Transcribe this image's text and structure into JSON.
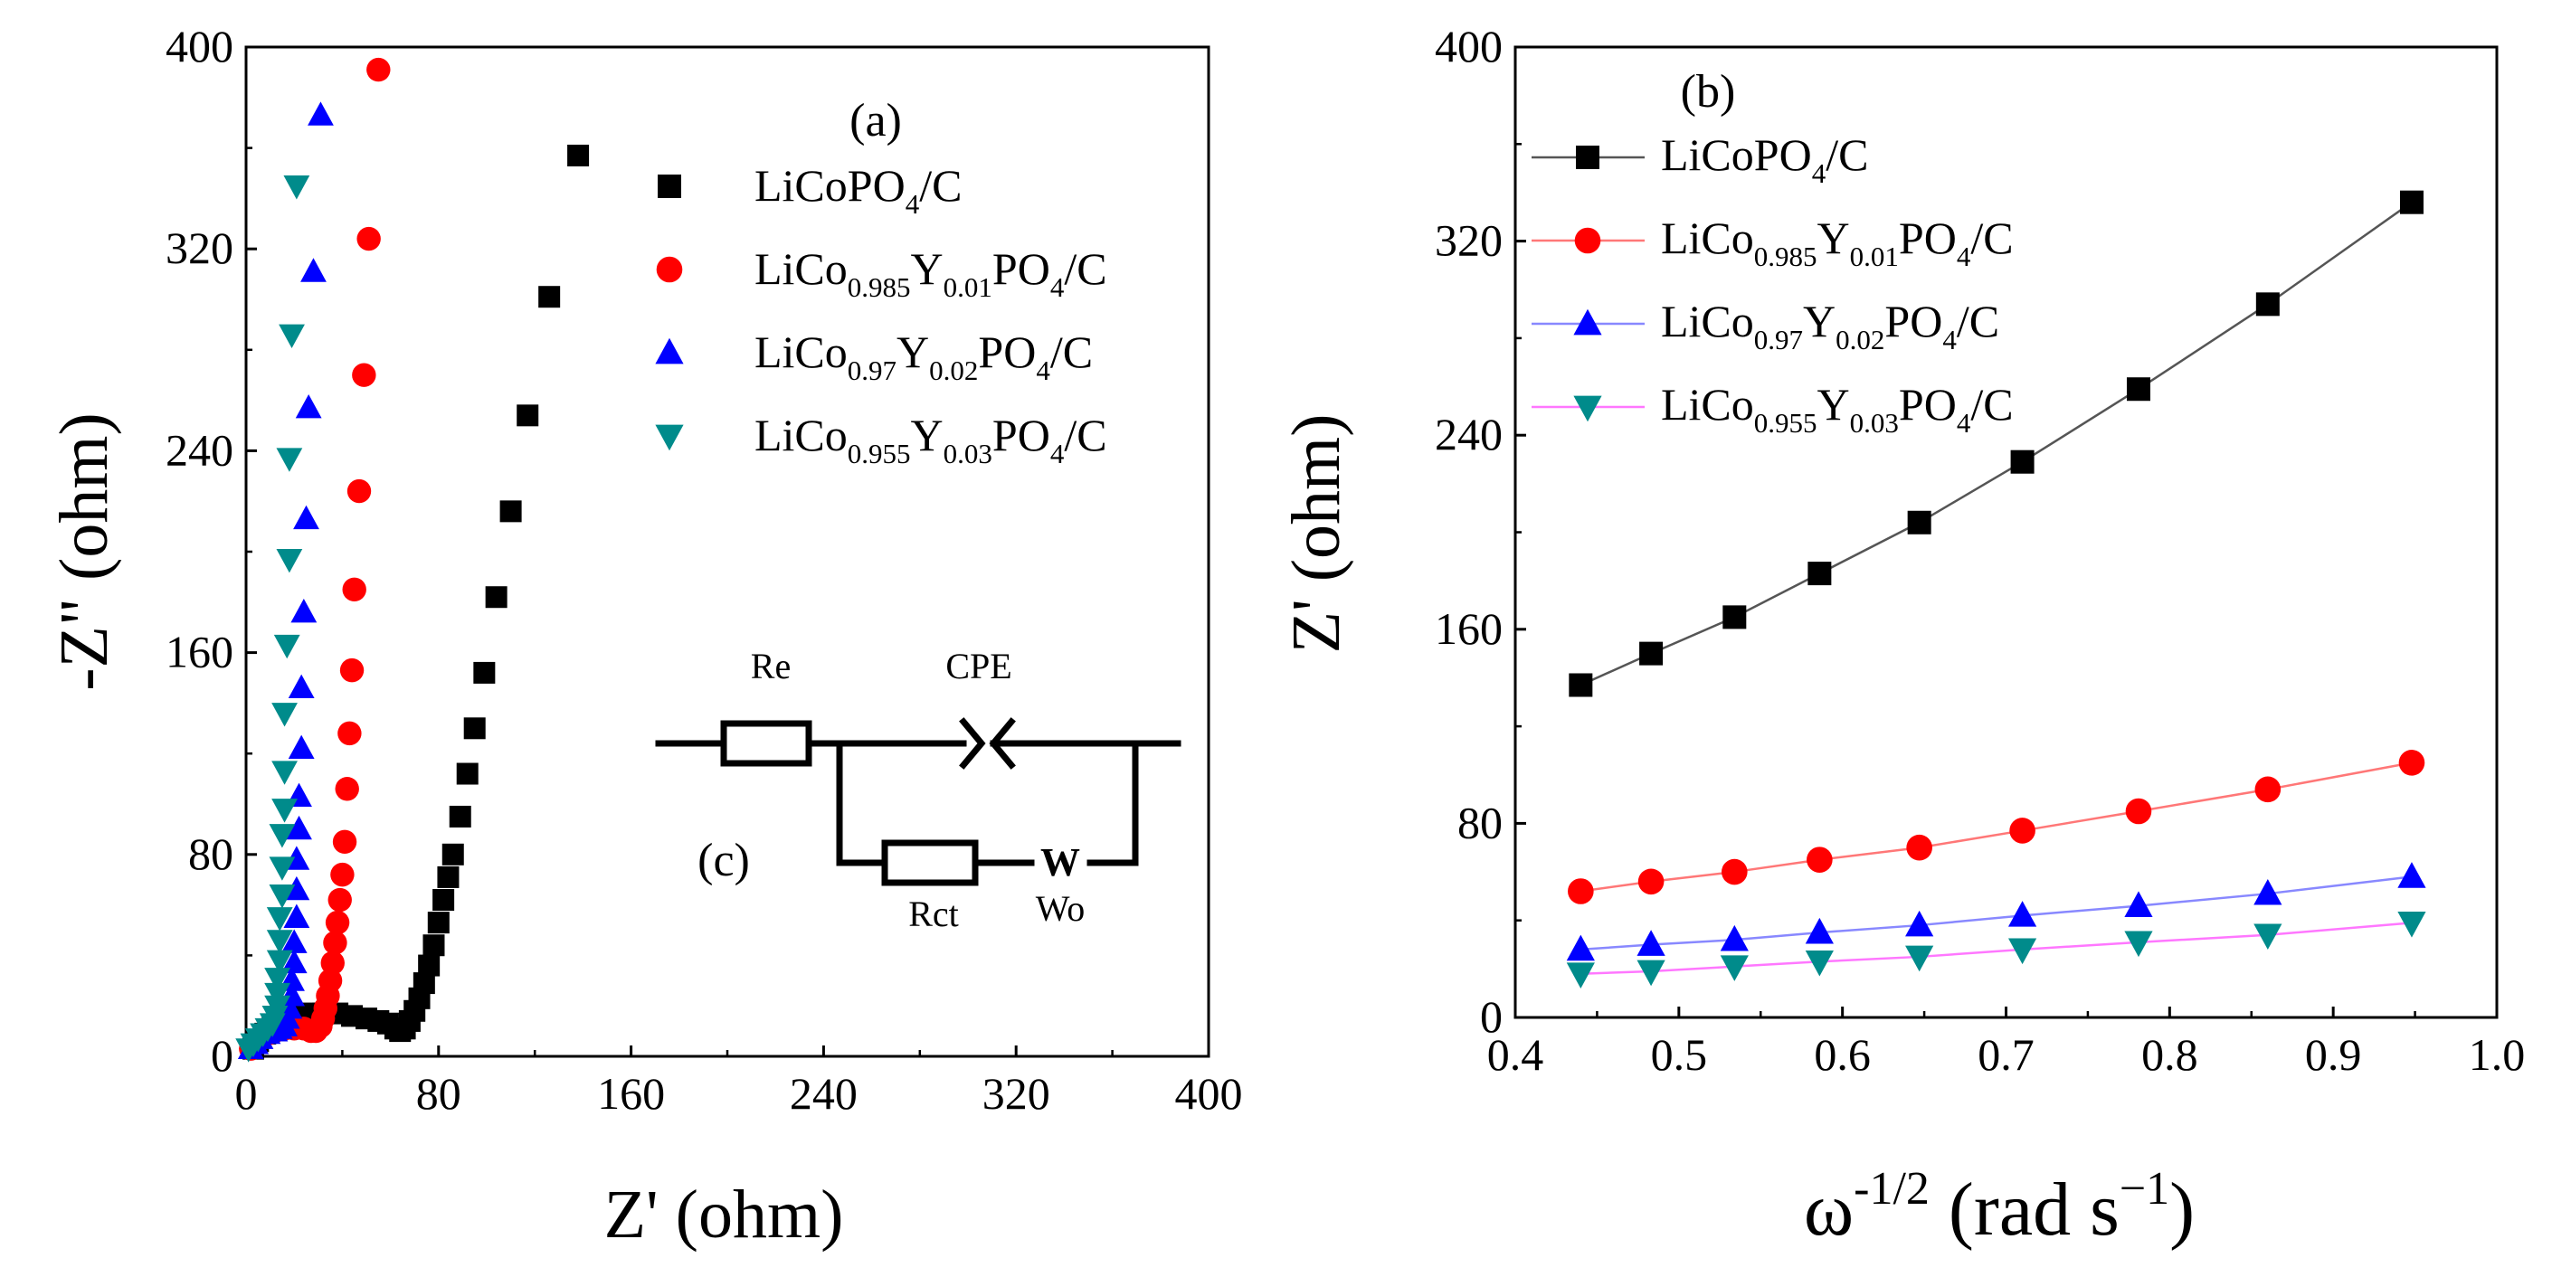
{
  "chart_data": [
    {
      "type": "scatter",
      "panel_label": "(a)",
      "xlabel": "Z' (ohm)",
      "ylabel": "-Z\" (ohm)",
      "xlim": [
        0,
        400
      ],
      "ylim": [
        0,
        400
      ],
      "xticks": [
        "0",
        "80",
        "160",
        "240",
        "320",
        "400"
      ],
      "yticks": [
        "0",
        "80",
        "160",
        "240",
        "320",
        "400"
      ],
      "legend_position": "top-right",
      "series": [
        {
          "name": "LiCoPO4/C",
          "name_parts": [
            {
              "t": "LiCoPO"
            },
            {
              "t": "4",
              "sub": true
            },
            {
              "t": "/C"
            }
          ],
          "marker": "square",
          "color": "#000000",
          "points": [
            [
              3,
              3
            ],
            [
              5,
              6
            ],
            [
              8,
              9
            ],
            [
              11,
              12
            ],
            [
              15,
              14
            ],
            [
              20,
              16
            ],
            [
              26,
              17
            ],
            [
              32,
              17
            ],
            [
              38,
              17
            ],
            [
              44,
              16
            ],
            [
              50,
              15
            ],
            [
              55,
              14
            ],
            [
              59,
              13
            ],
            [
              62,
              11
            ],
            [
              64,
              10
            ],
            [
              66,
              11
            ],
            [
              68,
              14
            ],
            [
              70,
              18
            ],
            [
              72,
              23
            ],
            [
              74,
              29
            ],
            [
              76,
              36
            ],
            [
              78,
              44
            ],
            [
              80,
              53
            ],
            [
              82,
              62
            ],
            [
              84,
              71
            ],
            [
              86,
              80
            ],
            [
              89,
              95
            ],
            [
              92,
              112
            ],
            [
              95,
              130
            ],
            [
              99,
              152
            ],
            [
              104,
              182
            ],
            [
              110,
              216
            ],
            [
              117,
              254
            ],
            [
              126,
              301
            ],
            [
              138,
              357
            ]
          ]
        },
        {
          "name": "LiCo0.985Y0.01PO4/C",
          "name_parts": [
            {
              "t": "LiCo"
            },
            {
              "t": "0.985",
              "sub": true
            },
            {
              "t": "Y"
            },
            {
              "t": "0.01",
              "sub": true
            },
            {
              "t": "PO"
            },
            {
              "t": "4",
              "sub": true
            },
            {
              "t": "/C"
            }
          ],
          "marker": "circle",
          "color": "#ff0000",
          "points": [
            [
              2,
              3
            ],
            [
              4,
              5
            ],
            [
              6,
              7
            ],
            [
              9,
              9
            ],
            [
              12,
              10
            ],
            [
              16,
              11
            ],
            [
              20,
              11
            ],
            [
              24,
              11
            ],
            [
              27,
              10
            ],
            [
              29,
              10
            ],
            [
              31,
              12
            ],
            [
              32,
              15
            ],
            [
              33,
              19
            ],
            [
              34,
              24
            ],
            [
              35,
              30
            ],
            [
              36,
              37
            ],
            [
              37,
              45
            ],
            [
              38,
              53
            ],
            [
              39,
              62
            ],
            [
              40,
              72
            ],
            [
              41,
              85
            ],
            [
              42,
              106
            ],
            [
              43,
              128
            ],
            [
              44,
              153
            ],
            [
              45,
              185
            ],
            [
              47,
              224
            ],
            [
              49,
              270
            ],
            [
              51,
              324
            ],
            [
              55,
              391
            ]
          ]
        },
        {
          "name": "LiCo0.97Y0.02PO4/C",
          "name_parts": [
            {
              "t": "LiCo"
            },
            {
              "t": "0.97",
              "sub": true
            },
            {
              "t": "Y"
            },
            {
              "t": "0.02",
              "sub": true
            },
            {
              "t": "PO"
            },
            {
              "t": "4",
              "sub": true
            },
            {
              "t": "/C"
            }
          ],
          "marker": "triangle-up",
          "color": "#0000ff",
          "points": [
            [
              2,
              3
            ],
            [
              4,
              5
            ],
            [
              6,
              7
            ],
            [
              9,
              9
            ],
            [
              12,
              10
            ],
            [
              14,
              11
            ],
            [
              16,
              12
            ],
            [
              17,
              15
            ],
            [
              18,
              19
            ],
            [
              19,
              24
            ],
            [
              19,
              30
            ],
            [
              20,
              37
            ],
            [
              20,
              45
            ],
            [
              21,
              55
            ],
            [
              21,
              66
            ],
            [
              21,
              78
            ],
            [
              22,
              90
            ],
            [
              22,
              103
            ],
            [
              23,
              122
            ],
            [
              23,
              146
            ],
            [
              24,
              176
            ],
            [
              25,
              213
            ],
            [
              26,
              257
            ],
            [
              28,
              311
            ],
            [
              31,
              373
            ]
          ]
        },
        {
          "name": "LiCo0.955Y0.03PO4/C",
          "name_parts": [
            {
              "t": "LiCo"
            },
            {
              "t": "0.955",
              "sub": true
            },
            {
              "t": "Y"
            },
            {
              "t": "0.03",
              "sub": true
            },
            {
              "t": "PO"
            },
            {
              "t": "4",
              "sub": true
            },
            {
              "t": "/C"
            }
          ],
          "marker": "triangle-down",
          "color": "#008b8b",
          "points": [
            [
              1,
              3
            ],
            [
              3,
              5
            ],
            [
              5,
              7
            ],
            [
              7,
              9
            ],
            [
              9,
              11
            ],
            [
              11,
              13
            ],
            [
              12,
              16
            ],
            [
              13,
              20
            ],
            [
              13,
              25
            ],
            [
              13,
              31
            ],
            [
              14,
              38
            ],
            [
              14,
              46
            ],
            [
              14,
              55
            ],
            [
              15,
              64
            ],
            [
              15,
              75
            ],
            [
              15,
              88
            ],
            [
              16,
              98
            ],
            [
              16,
              113
            ],
            [
              16,
              136
            ],
            [
              17,
              163
            ],
            [
              18,
              197
            ],
            [
              18,
              237
            ],
            [
              19,
              286
            ],
            [
              21,
              345
            ]
          ]
        }
      ],
      "inset": {
        "label": "(c)",
        "components": [
          "Re",
          "CPE",
          "Rct",
          "Wo"
        ],
        "warburg_symbol": "W"
      }
    },
    {
      "type": "line",
      "panel_label": "(b)",
      "xlabel": "ω-1/2 (rad s−1)",
      "ylabel": "Z' (ohm)",
      "xlim": [
        0.4,
        1.0
      ],
      "ylim": [
        0,
        400
      ],
      "xticks": [
        "0.4",
        "0.5",
        "0.6",
        "0.7",
        "0.8",
        "0.9",
        "1.0"
      ],
      "yticks": [
        "0",
        "80",
        "160",
        "240",
        "320",
        "400"
      ],
      "legend_position": "top-left",
      "x": [
        0.44,
        0.483,
        0.534,
        0.586,
        0.647,
        0.71,
        0.781,
        0.86,
        0.948
      ],
      "series": [
        {
          "name": "LiCoPO4/C",
          "marker": "square",
          "color": "#000000",
          "line_color": "#555555",
          "values": [
            137,
            150,
            165,
            183,
            204,
            229,
            259,
            294,
            336
          ]
        },
        {
          "name": "LiCo0.985Y0.01PO4/C",
          "marker": "circle",
          "color": "#ff0000",
          "line_color": "#ff7777",
          "values": [
            52,
            56,
            60,
            65,
            70,
            77,
            85,
            94,
            105
          ]
        },
        {
          "name": "LiCo0.97Y0.02PO4/C",
          "marker": "triangle-up",
          "color": "#0000ff",
          "line_color": "#8888ff",
          "values": [
            28,
            30,
            32,
            35,
            38,
            42,
            46,
            51,
            58
          ]
        },
        {
          "name": "LiCo0.955Y0.03PO4/C",
          "marker": "triangle-down",
          "color": "#008b8b",
          "line_color": "#ff77ff",
          "values": [
            18,
            19,
            21,
            23,
            25,
            28,
            31,
            34,
            39
          ]
        }
      ]
    }
  ]
}
